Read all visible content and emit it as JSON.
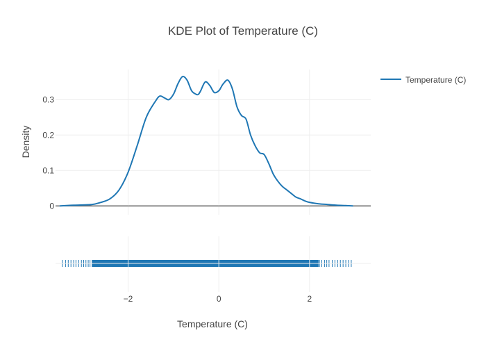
{
  "chart_data": {
    "type": "line",
    "title": "KDE Plot of Temperature (C)",
    "xlabel": "Temperature (C)",
    "ylabel": "Density",
    "xlim": [
      -3.6,
      3.35
    ],
    "ylim": [
      -0.025,
      0.385
    ],
    "x_ticks": [
      -2,
      0,
      2
    ],
    "x_tick_labels": [
      "−2",
      "0",
      "2"
    ],
    "y_ticks": [
      0,
      0.1,
      0.2,
      0.3
    ],
    "y_tick_labels": [
      "0",
      "0.1",
      "0.2",
      "0.3"
    ],
    "grid": true,
    "legend_position": "top-right",
    "series": [
      {
        "name": "Temperature (C)",
        "color": "#1f77b4",
        "x": [
          -3.5,
          -3.2,
          -2.8,
          -2.6,
          -2.4,
          -2.2,
          -2.0,
          -1.8,
          -1.6,
          -1.4,
          -1.3,
          -1.2,
          -1.1,
          -1.0,
          -0.9,
          -0.8,
          -0.7,
          -0.6,
          -0.5,
          -0.45,
          -0.4,
          -0.3,
          -0.2,
          -0.1,
          0.0,
          0.05,
          0.1,
          0.2,
          0.3,
          0.4,
          0.5,
          0.6,
          0.7,
          0.8,
          0.9,
          1.0,
          1.1,
          1.2,
          1.3,
          1.4,
          1.5,
          1.6,
          1.7,
          1.8,
          1.9,
          2.0,
          2.2,
          2.4,
          2.6,
          2.8,
          2.95
        ],
        "y": [
          0.0,
          0.002,
          0.004,
          0.01,
          0.02,
          0.045,
          0.095,
          0.17,
          0.25,
          0.295,
          0.31,
          0.305,
          0.3,
          0.315,
          0.345,
          0.365,
          0.355,
          0.325,
          0.315,
          0.315,
          0.325,
          0.35,
          0.34,
          0.32,
          0.325,
          0.335,
          0.345,
          0.355,
          0.33,
          0.28,
          0.255,
          0.245,
          0.2,
          0.17,
          0.15,
          0.145,
          0.12,
          0.09,
          0.07,
          0.055,
          0.045,
          0.035,
          0.025,
          0.02,
          0.014,
          0.01,
          0.006,
          0.004,
          0.002,
          0.001,
          0.0
        ]
      }
    ],
    "rug": {
      "series": "Temperature (C)",
      "color": "#1f77b4",
      "dense_range": [
        -2.8,
        2.2
      ],
      "sparse_x": [
        -3.45,
        -3.38,
        -3.32,
        -3.26,
        -3.2,
        -3.15,
        -3.09,
        -3.03,
        -2.98,
        -2.93,
        -2.88,
        -2.84,
        2.22,
        2.27,
        2.33,
        2.38,
        2.43,
        2.5,
        2.56,
        2.62,
        2.68,
        2.74,
        2.8,
        2.86,
        2.92
      ]
    }
  }
}
